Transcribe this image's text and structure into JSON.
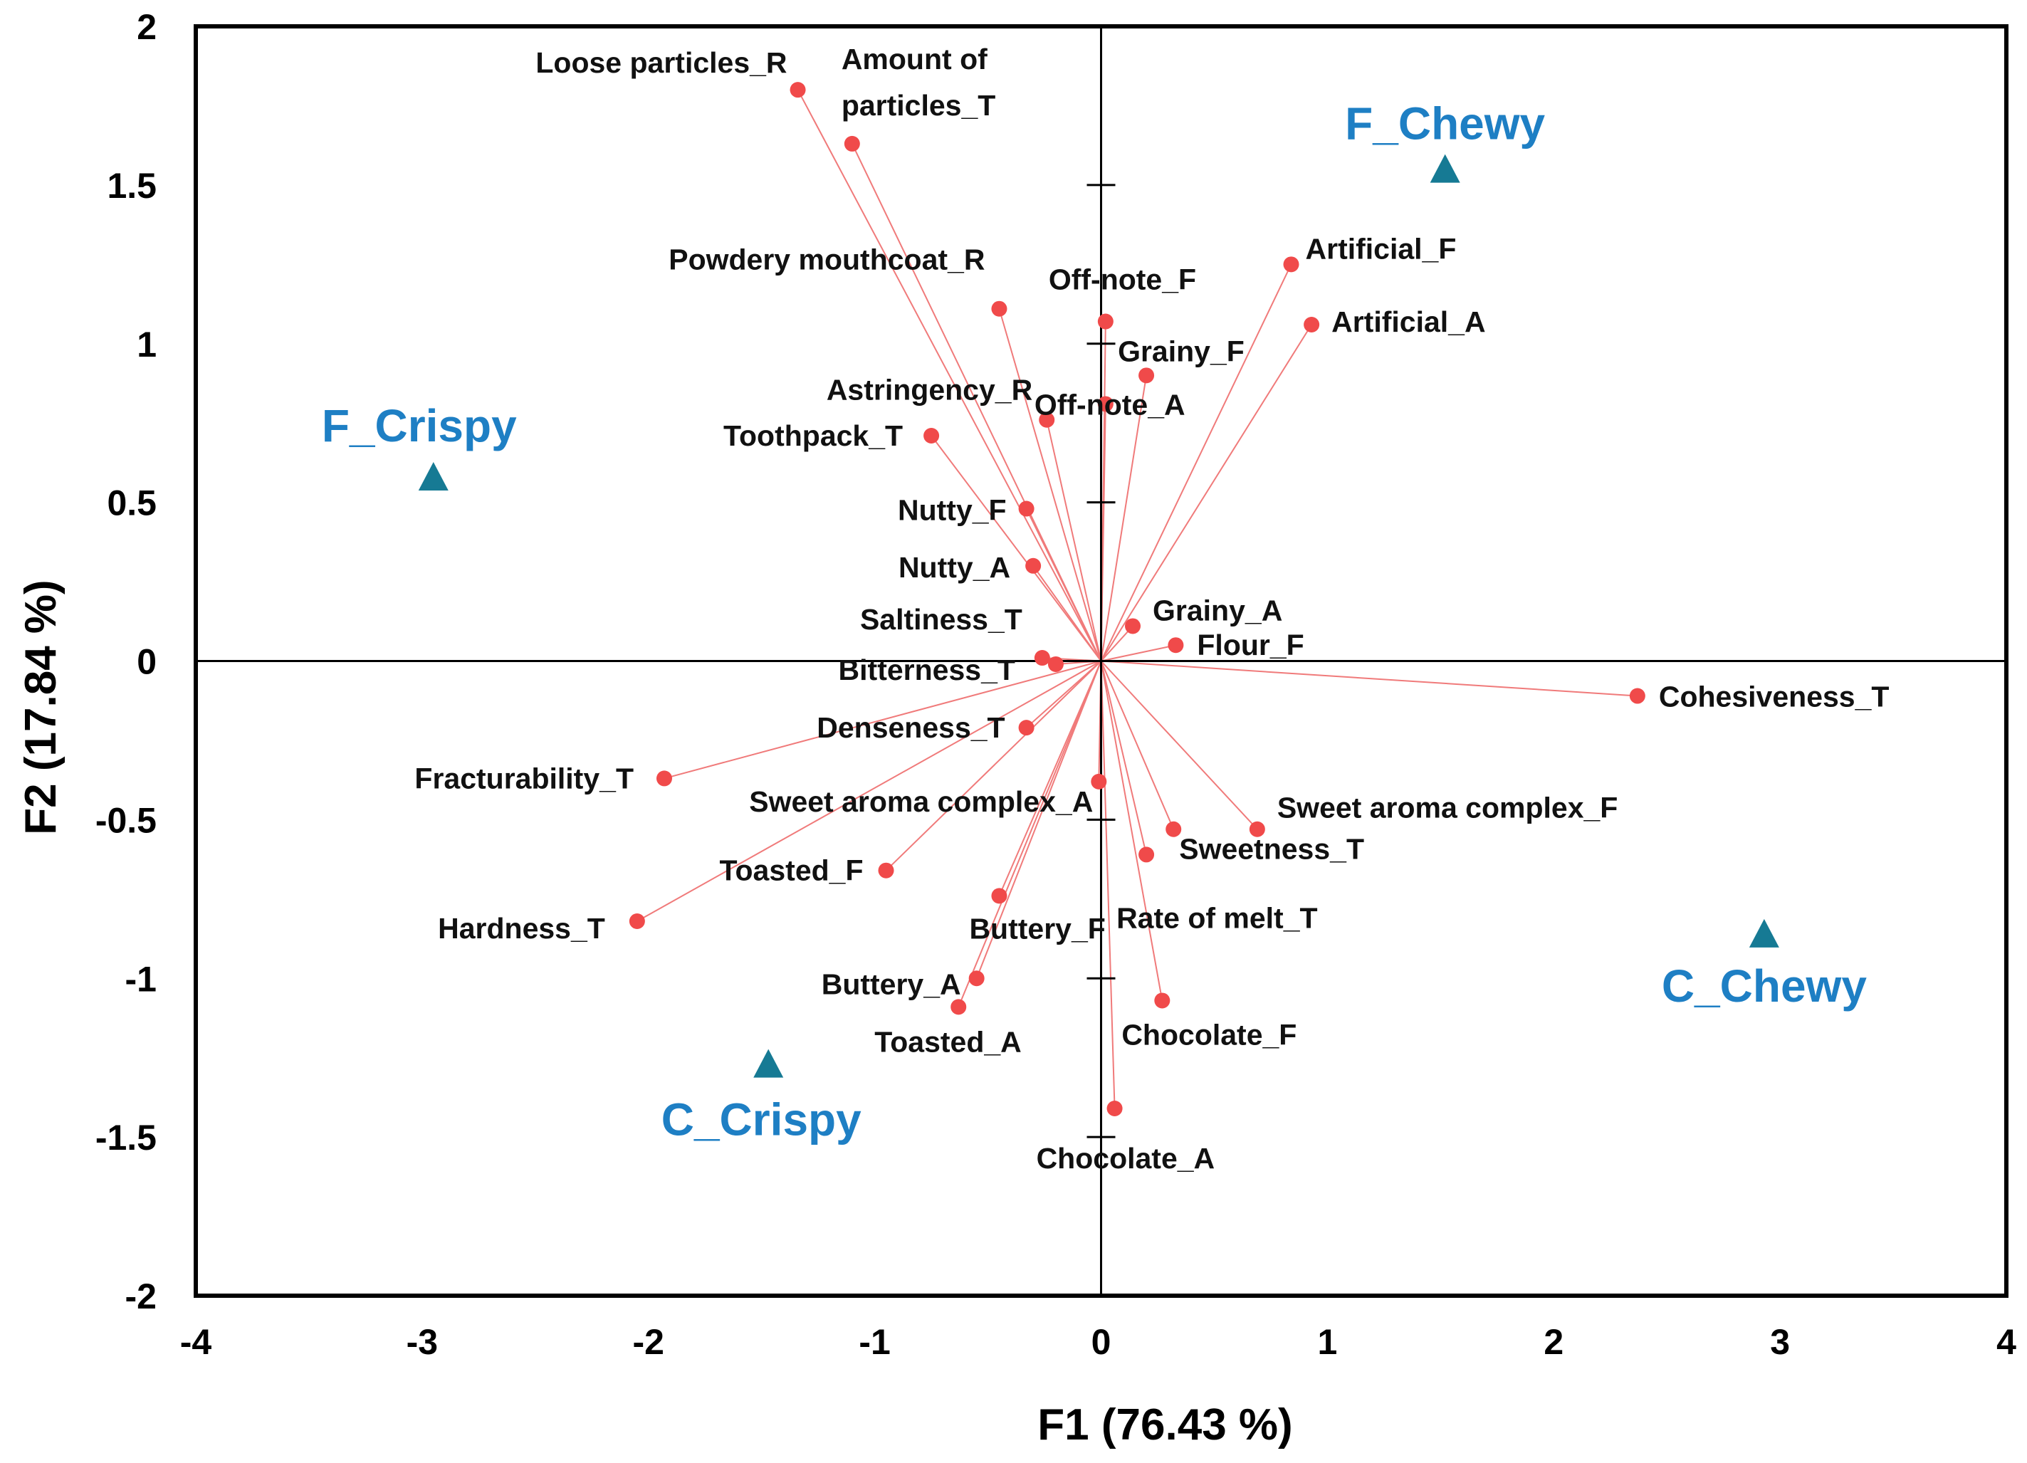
{
  "chart_data": {
    "type": "scatter",
    "subtype": "pca-biplot",
    "xlabel": "F1 (76.43 %)",
    "ylabel": "F2 (17.84 %)",
    "xlim": [
      -4,
      4
    ],
    "ylim": [
      -2,
      2
    ],
    "xticks": [
      -4,
      -3,
      -2,
      -1,
      0,
      1,
      2,
      3,
      4
    ],
    "yticks": [
      -2,
      -1.5,
      -1,
      -0.5,
      0,
      0.5,
      1,
      1.5,
      2
    ],
    "colors": {
      "variable": "#f04a4a",
      "vector": "#f07a7a",
      "observation": "#167a94",
      "observation_label": "#1e7fc4",
      "axis": "#000000"
    },
    "variables": [
      {
        "name": "Loose particles_R",
        "x": -1.34,
        "y": 1.8
      },
      {
        "name": "Amount of particles_T",
        "x": -1.1,
        "y": 1.63
      },
      {
        "name": "Powdery mouthcoat_R",
        "x": -0.45,
        "y": 1.11
      },
      {
        "name": "Off-note_F",
        "x": 0.02,
        "y": 1.07
      },
      {
        "name": "Grainy_F",
        "x": 0.2,
        "y": 0.9
      },
      {
        "name": "Off-note_A",
        "x": 0.02,
        "y": 0.81
      },
      {
        "name": "Artificial_F",
        "x": 0.84,
        "y": 1.25
      },
      {
        "name": "Artificial_A",
        "x": 0.93,
        "y": 1.06
      },
      {
        "name": "Astringency_R",
        "x": -0.24,
        "y": 0.76
      },
      {
        "name": "Toothpack_T",
        "x": -0.75,
        "y": 0.71
      },
      {
        "name": "Nutty_F",
        "x": -0.33,
        "y": 0.48
      },
      {
        "name": "Nutty_A",
        "x": -0.3,
        "y": 0.3
      },
      {
        "name": "Grainy_A",
        "x": 0.14,
        "y": 0.11
      },
      {
        "name": "Flour_F",
        "x": 0.33,
        "y": 0.05
      },
      {
        "name": "Saltiness_T",
        "x": -0.26,
        "y": 0.01
      },
      {
        "name": "Bitterness_T",
        "x": -0.2,
        "y": -0.01
      },
      {
        "name": "Cohesiveness_T",
        "x": 2.37,
        "y": -0.11
      },
      {
        "name": "Denseness_T",
        "x": -0.33,
        "y": -0.21
      },
      {
        "name": "Fracturability_T",
        "x": -1.93,
        "y": -0.37
      },
      {
        "name": "Sweet aroma complex_A",
        "x": -0.01,
        "y": -0.38
      },
      {
        "name": "Sweet aroma complex_F",
        "x": 0.69,
        "y": -0.53
      },
      {
        "name": "Sweetness_T",
        "x": 0.32,
        "y": -0.53
      },
      {
        "name": "Rate of melt_T",
        "x": 0.2,
        "y": -0.61
      },
      {
        "name": "Toasted_F",
        "x": -0.95,
        "y": -0.66
      },
      {
        "name": "Hardness_T",
        "x": -2.05,
        "y": -0.82
      },
      {
        "name": "Buttery_F",
        "x": -0.45,
        "y": -0.74
      },
      {
        "name": "Buttery_A",
        "x": -0.55,
        "y": -1.0
      },
      {
        "name": "Toasted_A",
        "x": -0.63,
        "y": -1.09
      },
      {
        "name": "Chocolate_F",
        "x": 0.27,
        "y": -1.07
      },
      {
        "name": "Chocolate_A",
        "x": 0.06,
        "y": -1.41
      }
    ],
    "observations": [
      {
        "name": "F_Chewy",
        "x": 1.52,
        "y": 1.55
      },
      {
        "name": "F_Crispy",
        "x": -2.95,
        "y": 0.58
      },
      {
        "name": "C_Chewy",
        "x": 2.93,
        "y": -0.86
      },
      {
        "name": "C_Crispy",
        "x": -1.47,
        "y": -1.27
      }
    ]
  }
}
